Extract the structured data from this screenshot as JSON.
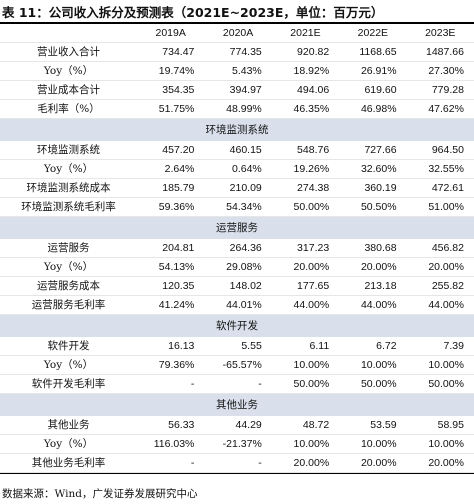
{
  "title": "表 11：公司收入拆分及预测表（2021E~2023E，单位：百万元）",
  "columns": [
    "2019A",
    "2020A",
    "2021E",
    "2022E",
    "2023E"
  ],
  "summary_rows": [
    {
      "label": "营业收入合计",
      "values": [
        "734.47",
        "774.35",
        "920.82",
        "1168.65",
        "1487.66"
      ]
    },
    {
      "label": "Yoy（%）",
      "values": [
        "19.74%",
        "5.43%",
        "18.92%",
        "26.91%",
        "27.30%"
      ]
    },
    {
      "label": "营业成本合计",
      "values": [
        "354.35",
        "394.97",
        "494.06",
        "619.60",
        "779.28"
      ]
    },
    {
      "label": "毛利率（%）",
      "values": [
        "51.75%",
        "48.99%",
        "46.35%",
        "46.98%",
        "47.62%"
      ]
    }
  ],
  "sections": [
    {
      "title": "环境监测系统",
      "rows": [
        {
          "label": "环境监测系统",
          "values": [
            "457.20",
            "460.15",
            "548.76",
            "727.66",
            "964.50"
          ]
        },
        {
          "label": "Yoy（%）",
          "values": [
            "2.64%",
            "0.64%",
            "19.26%",
            "32.60%",
            "32.55%"
          ]
        },
        {
          "label": "环境监测系统成本",
          "values": [
            "185.79",
            "210.09",
            "274.38",
            "360.19",
            "472.61"
          ]
        },
        {
          "label": "环境监测系统毛利率",
          "values": [
            "59.36%",
            "54.34%",
            "50.00%",
            "50.50%",
            "51.00%"
          ]
        }
      ]
    },
    {
      "title": "运营服务",
      "rows": [
        {
          "label": "运营服务",
          "values": [
            "204.81",
            "264.36",
            "317.23",
            "380.68",
            "456.82"
          ]
        },
        {
          "label": "Yoy（%）",
          "values": [
            "54.13%",
            "29.08%",
            "20.00%",
            "20.00%",
            "20.00%"
          ]
        },
        {
          "label": "运营服务成本",
          "values": [
            "120.35",
            "148.02",
            "177.65",
            "213.18",
            "255.82"
          ]
        },
        {
          "label": "运营服务毛利率",
          "values": [
            "41.24%",
            "44.01%",
            "44.00%",
            "44.00%",
            "44.00%"
          ]
        }
      ]
    },
    {
      "title": "软件开发",
      "rows": [
        {
          "label": "软件开发",
          "values": [
            "16.13",
            "5.55",
            "6.11",
            "6.72",
            "7.39"
          ]
        },
        {
          "label": "Yoy（%）",
          "values": [
            "79.36%",
            "-65.57%",
            "10.00%",
            "10.00%",
            "10.00%"
          ]
        },
        {
          "label": "软件开发毛利率",
          "values": [
            "-",
            "-",
            "50.00%",
            "50.00%",
            "50.00%"
          ]
        }
      ]
    },
    {
      "title": "其他业务",
      "rows": [
        {
          "label": "其他业务",
          "values": [
            "56.33",
            "44.29",
            "48.72",
            "53.59",
            "58.95"
          ]
        },
        {
          "label": "Yoy（%）",
          "values": [
            "116.03%",
            "-21.37%",
            "10.00%",
            "10.00%",
            "10.00%"
          ]
        },
        {
          "label": "其他业务毛利率",
          "values": [
            "-",
            "-",
            "20.00%",
            "20.00%",
            "20.00%"
          ]
        }
      ]
    }
  ],
  "source": "数据来源：Wind，广发证券发展研究中心"
}
